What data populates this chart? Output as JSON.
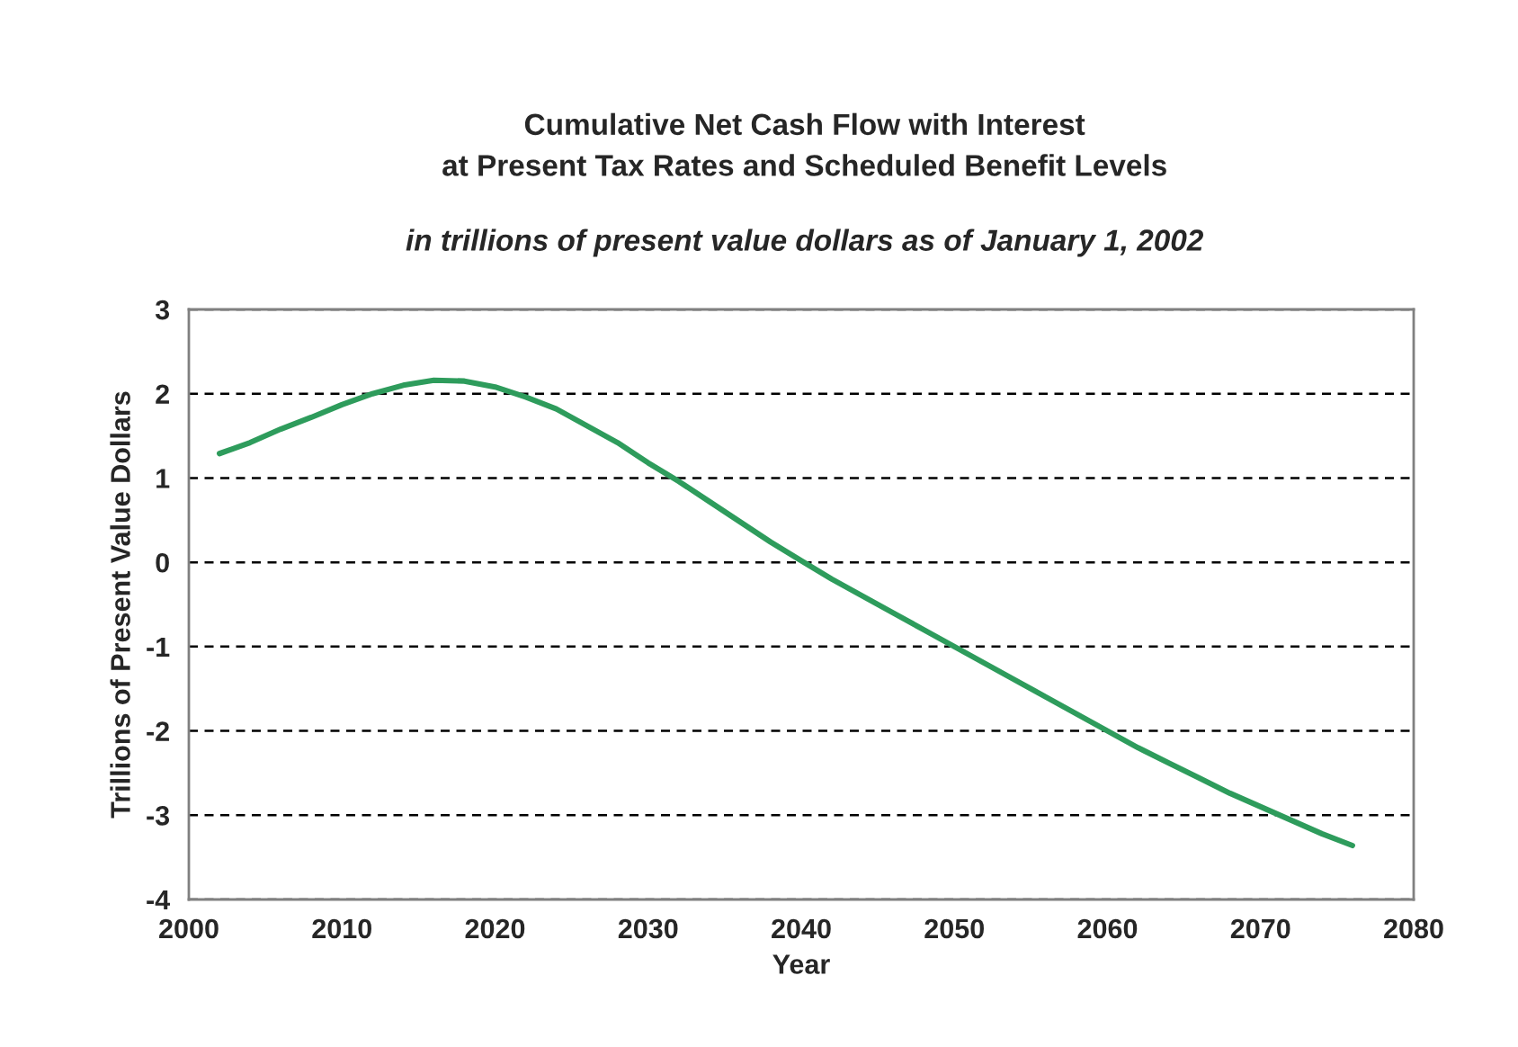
{
  "chart_data": {
    "type": "line",
    "title": "Cumulative Net Cash Flow with Interest\nat Present Tax Rates and Scheduled Benefit Levels",
    "subtitle": "in trillions of present value dollars as of January 1, 2002",
    "xlabel": "Year",
    "ylabel": "Trillions of Present Value Dollars",
    "x": [
      2002,
      2004,
      2006,
      2008,
      2010,
      2012,
      2014,
      2016,
      2018,
      2020,
      2022,
      2024,
      2026,
      2028,
      2030,
      2032,
      2034,
      2036,
      2038,
      2040,
      2042,
      2044,
      2046,
      2048,
      2050,
      2052,
      2054,
      2056,
      2058,
      2060,
      2062,
      2064,
      2066,
      2068,
      2070,
      2072,
      2074,
      2076
    ],
    "series": [
      {
        "color": "#2e9c5c",
        "values": [
          1.29,
          1.42,
          1.58,
          1.72,
          1.87,
          2.0,
          2.1,
          2.16,
          2.15,
          2.08,
          1.96,
          1.82,
          1.62,
          1.42,
          1.18,
          0.96,
          0.72,
          0.48,
          0.24,
          0.02,
          -0.2,
          -0.4,
          -0.6,
          -0.8,
          -1.0,
          -1.2,
          -1.4,
          -1.6,
          -1.8,
          -2.0,
          -2.2,
          -2.38,
          -2.56,
          -2.74,
          -2.9,
          -3.06,
          -3.22,
          -3.36
        ]
      }
    ],
    "xlim": [
      2000,
      2080
    ],
    "xticks": [
      2000,
      2010,
      2020,
      2030,
      2040,
      2050,
      2060,
      2070,
      2080
    ],
    "ylim": [
      -4,
      3
    ],
    "yticks": [
      -4,
      -3,
      -2,
      -1,
      0,
      1,
      2,
      3
    ],
    "grid": "y",
    "marker": "none",
    "line_style": "solid",
    "legend": false
  }
}
